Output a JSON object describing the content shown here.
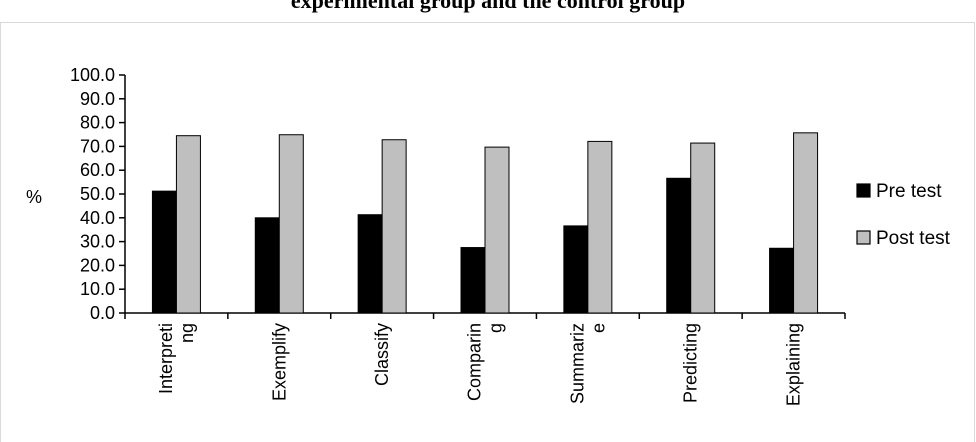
{
  "chart_data": {
    "type": "bar",
    "title": "experimental group and the control group",
    "ylabel": "%",
    "xlabel": "",
    "ylim": [
      0,
      100
    ],
    "yticks": [
      "0.0",
      "10.0",
      "20.0",
      "30.0",
      "40.0",
      "50.0",
      "60.0",
      "70.0",
      "80.0",
      "90.0",
      "100.0"
    ],
    "categories": [
      [
        "Interpreti",
        "ng"
      ],
      [
        "Exemplify"
      ],
      [
        "Classify"
      ],
      [
        "Comparin",
        "g"
      ],
      [
        "Summariz",
        "e"
      ],
      [
        "Predicting"
      ],
      [
        "Explaining"
      ]
    ],
    "series": [
      {
        "name": "Pre test",
        "color": "#000000",
        "values": [
          51.2,
          40.0,
          41.3,
          27.5,
          36.6,
          56.6,
          27.2
        ]
      },
      {
        "name": "Post test",
        "color": "#bfbfbf",
        "values": [
          74.5,
          74.9,
          72.8,
          69.7,
          72.1,
          71.4,
          75.7
        ]
      }
    ],
    "grid": false,
    "legend": "right"
  }
}
